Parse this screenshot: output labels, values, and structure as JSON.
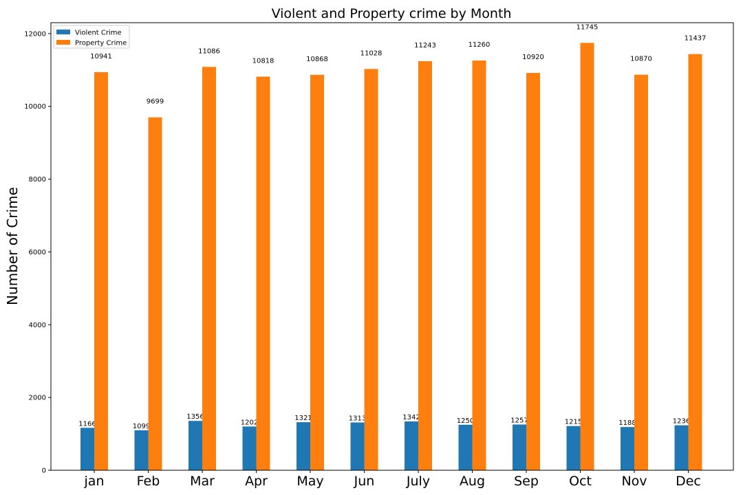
{
  "chart_data": {
    "type": "bar",
    "title": "Violent and Property crime by Month",
    "xlabel": "",
    "ylabel": "Number of Crime",
    "categories": [
      "jan",
      "Feb",
      "Mar",
      "Apr",
      "May",
      "Jun",
      "July",
      "Aug",
      "Sep",
      "Oct",
      "Nov",
      "Dec"
    ],
    "series": [
      {
        "name": "Violent Crime",
        "color": "#1f77b4",
        "values": [
          1166,
          1099,
          1356,
          1202,
          1321,
          1313,
          1342,
          1250,
          1257,
          1215,
          1188,
          1236
        ]
      },
      {
        "name": "Property Crime",
        "color": "#ff7f0e",
        "values": [
          10941,
          9699,
          11086,
          10818,
          10868,
          11028,
          11243,
          11260,
          10920,
          11745,
          10870,
          11437
        ]
      }
    ],
    "ylim": [
      0,
      12300
    ],
    "yticks": [
      0,
      2000,
      4000,
      6000,
      8000,
      10000,
      12000
    ],
    "grid": false,
    "legend_position": "top-left",
    "data_labels": true
  }
}
